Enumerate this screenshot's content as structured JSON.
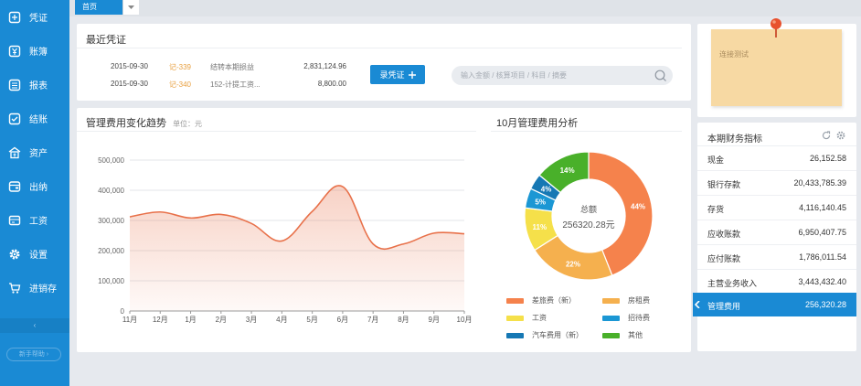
{
  "sidebar": {
    "items": [
      {
        "label": "凭证",
        "icon": "voucher-icon"
      },
      {
        "label": "账簿",
        "icon": "ledger-icon"
      },
      {
        "label": "报表",
        "icon": "report-icon"
      },
      {
        "label": "结账",
        "icon": "checkout-icon"
      },
      {
        "label": "资产",
        "icon": "asset-icon"
      },
      {
        "label": "出纳",
        "icon": "cashier-icon"
      },
      {
        "label": "工资",
        "icon": "salary-icon"
      },
      {
        "label": "设置",
        "icon": "gear-icon"
      },
      {
        "label": "进销存",
        "icon": "cart-icon"
      }
    ],
    "collapse_label": "‹",
    "guide_label": "新手帮助 ›"
  },
  "tabs": {
    "home": "首页"
  },
  "recent": {
    "title": "最近凭证",
    "rows": [
      {
        "date": "2015-09-30",
        "num": "记-339",
        "desc": "结转本期损益",
        "amount": "2,831,124.96"
      },
      {
        "date": "2015-09-30",
        "num": "记-340",
        "desc": "152-计提工资...",
        "amount": "8,800.00"
      }
    ],
    "add_button": "录凭证",
    "search_placeholder": "输入金额 / 核算项目 / 科目 / 摘要"
  },
  "trend": {
    "title": "管理费用变化趋势",
    "unit": "单位：元"
  },
  "breakdown": {
    "title": "10月管理费用分析",
    "center_label": "总额",
    "center_value": "256320.28元"
  },
  "chart_data": [
    {
      "type": "area",
      "title": "管理费用变化趋势",
      "categories": [
        "11月",
        "12月",
        "1月",
        "2月",
        "3月",
        "4月",
        "5月",
        "6月",
        "7月",
        "8月",
        "9月",
        "10月"
      ],
      "values": [
        312000,
        328000,
        308000,
        320000,
        290000,
        232000,
        330000,
        412000,
        222000,
        222000,
        258000,
        256000
      ],
      "ylim": [
        0,
        500000
      ],
      "yticks": [
        "0",
        "100,000",
        "200,000",
        "300,000",
        "400,000",
        "500,000"
      ],
      "color": "#e8714a"
    },
    {
      "type": "pie",
      "title": "10月管理费用分析",
      "slices": [
        {
          "name": "差旅费（新）",
          "value": 44,
          "label": "44%",
          "color": "#f5824c"
        },
        {
          "name": "房租费",
          "value": 22,
          "label": "22%",
          "color": "#f5b04e"
        },
        {
          "name": "工资",
          "value": 11,
          "label": "11%",
          "color": "#f5e04a"
        },
        {
          "name": "招待费",
          "value": 5,
          "label": "5%",
          "color": "#1b97d4"
        },
        {
          "name": "汽车费用（新）",
          "value": 4,
          "label": "4%",
          "color": "#1678b4"
        },
        {
          "name": "其他",
          "value": 14,
          "label": "14%",
          "color": "#49b02a"
        }
      ]
    }
  ],
  "note": {
    "text": "连接测试"
  },
  "indicators": {
    "title": "本期财务指标",
    "rows": [
      {
        "label": "现金",
        "value": "26,152.58"
      },
      {
        "label": "银行存款",
        "value": "20,433,785.39"
      },
      {
        "label": "存货",
        "value": "4,116,140.45"
      },
      {
        "label": "应收账款",
        "value": "6,950,407.75"
      },
      {
        "label": "应付账款",
        "value": "1,786,011.54"
      },
      {
        "label": "主营业务收入",
        "value": "3,443,432.40"
      },
      {
        "label": "管理费用",
        "value": "256,320.28"
      }
    ]
  },
  "colors": {
    "accent": "#1a8ad4",
    "trend": "#e8714a"
  }
}
